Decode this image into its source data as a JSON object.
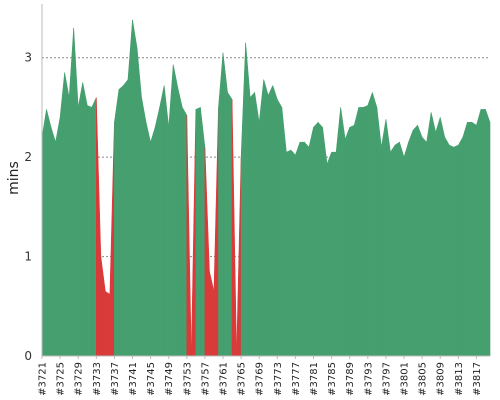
{
  "chart_data": {
    "type": "area",
    "ylabel": "mins",
    "ylim": [
      0,
      3.5
    ],
    "yticks": [
      "0",
      "1",
      "2",
      "3"
    ],
    "grid": true,
    "x_start": 3721,
    "x_end": 3819,
    "x_labels": [
      "#3721",
      "#3725",
      "#3729",
      "#3733",
      "#3737",
      "#3741",
      "#3745",
      "#3749",
      "#3753",
      "#3757",
      "#3761",
      "#3765",
      "#3769",
      "#3773",
      "#3777",
      "#3781",
      "#3785",
      "#3789",
      "#3793",
      "#3797",
      "#3801",
      "#3805",
      "#3809",
      "#3813",
      "#3817"
    ],
    "colors": {
      "pass": "#459f6e",
      "fail": "#d93a3a",
      "grid": "#888888",
      "axis": "#bbbbbb"
    },
    "values": [
      2.2,
      2.48,
      2.3,
      2.15,
      2.4,
      2.85,
      2.6,
      3.3,
      2.5,
      2.75,
      2.52,
      2.5,
      2.6,
      1.0,
      0.65,
      0.62,
      2.35,
      2.68,
      2.72,
      2.78,
      3.38,
      3.1,
      2.6,
      2.35,
      2.15,
      2.3,
      2.5,
      2.72,
      2.3,
      2.93,
      2.7,
      2.5,
      2.42,
      0.0,
      2.48,
      2.5,
      2.1,
      0.85,
      0.65,
      2.5,
      3.05,
      2.65,
      2.58,
      0.0,
      2.0,
      3.15,
      2.6,
      2.65,
      2.35,
      2.78,
      2.62,
      2.72,
      2.58,
      2.5,
      2.05,
      2.07,
      2.02,
      2.15,
      2.15,
      2.1,
      2.3,
      2.35,
      2.3,
      1.93,
      2.05,
      2.05,
      2.5,
      2.18,
      2.3,
      2.32,
      2.5,
      2.5,
      2.52,
      2.65,
      2.5,
      2.1,
      2.38,
      2.05,
      2.12,
      2.15,
      2.0,
      2.15,
      2.27,
      2.32,
      2.2,
      2.15,
      2.45,
      2.25,
      2.4,
      2.2,
      2.12,
      2.1,
      2.12,
      2.2,
      2.35,
      2.35,
      2.32,
      2.48,
      2.48,
      2.35
    ],
    "status": [
      "pass",
      "pass",
      "pass",
      "pass",
      "pass",
      "pass",
      "pass",
      "pass",
      "pass",
      "pass",
      "pass",
      "pass",
      "pass",
      "fail",
      "fail",
      "fail",
      "pass",
      "pass",
      "pass",
      "pass",
      "pass",
      "pass",
      "pass",
      "pass",
      "pass",
      "pass",
      "pass",
      "pass",
      "pass",
      "pass",
      "pass",
      "pass",
      "pass",
      "fail",
      "pass",
      "pass",
      "pass",
      "fail",
      "fail",
      "pass",
      "pass",
      "pass",
      "pass",
      "fail",
      "pass",
      "pass",
      "pass",
      "pass",
      "pass",
      "pass",
      "pass",
      "pass",
      "pass",
      "pass",
      "pass",
      "pass",
      "pass",
      "pass",
      "pass",
      "pass",
      "pass",
      "pass",
      "pass",
      "pass",
      "pass",
      "pass",
      "pass",
      "pass",
      "pass",
      "pass",
      "pass",
      "pass",
      "pass",
      "pass",
      "pass",
      "pass",
      "pass",
      "pass",
      "pass",
      "pass",
      "pass",
      "pass",
      "pass",
      "pass",
      "pass",
      "pass",
      "pass",
      "pass",
      "pass",
      "pass",
      "pass",
      "pass",
      "pass",
      "pass",
      "pass",
      "pass",
      "pass",
      "pass",
      "pass",
      "pass"
    ]
  }
}
